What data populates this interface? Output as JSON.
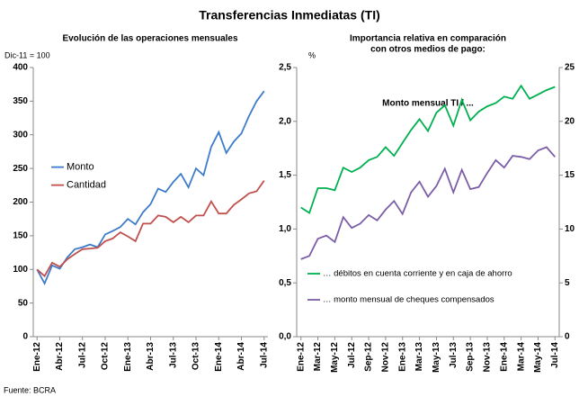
{
  "title": "Transferencias Inmediatas (TI)",
  "source": "Fuente: BCRA",
  "chart_data": [
    {
      "type": "line",
      "subtitle": [
        "Evolución de las operaciones mensuales"
      ],
      "ylabel": "Dic-11 = 100",
      "categories": [
        "Ene-12",
        null,
        null,
        "Abr-12",
        null,
        null,
        "Jul-12",
        null,
        null,
        "Oct-12",
        null,
        null,
        "Ene-13",
        null,
        null,
        "Abr-13",
        null,
        null,
        "Jul-13",
        null,
        null,
        "Oct-13",
        null,
        null,
        "Ene-14",
        null,
        null,
        "Abr-14",
        null,
        null,
        "Jul-14"
      ],
      "series": [
        {
          "name": "Monto",
          "color": "#3d7cc9",
          "values": [
            100,
            79,
            106,
            101,
            118,
            130,
            133,
            137,
            133,
            152,
            157,
            163,
            175,
            167,
            185,
            197,
            220,
            215,
            230,
            242,
            222,
            250,
            240,
            282,
            304,
            273,
            290,
            302,
            328,
            350,
            365
          ]
        },
        {
          "name": "Cantidad",
          "color": "#c0504d",
          "values": [
            100,
            90,
            110,
            104,
            115,
            123,
            130,
            131,
            132,
            142,
            146,
            155,
            149,
            142,
            168,
            168,
            180,
            178,
            170,
            178,
            170,
            180,
            180,
            201,
            183,
            183,
            196,
            204,
            213,
            216,
            232
          ]
        }
      ],
      "ylim": [
        0,
        400
      ],
      "yticks": [
        0,
        50,
        100,
        150,
        200,
        250,
        300,
        350,
        400
      ],
      "grid": false,
      "legend": "center-left"
    },
    {
      "type": "line",
      "subtitle": [
        "Importancia relativa en comparación",
        "con otros medios de pago:"
      ],
      "ylabel": "%",
      "note": "Monto mensual TI / ...",
      "categories": [
        "Ene-12",
        null,
        "Mar-12",
        null,
        "May-12",
        null,
        "Jul-12",
        null,
        "Sep-12",
        null,
        "Nov-12",
        null,
        "Ene-13",
        null,
        "Mar-13",
        null,
        "May-13",
        null,
        "Jul-13",
        null,
        "Sep-13",
        null,
        "Nov-13",
        null,
        "Ene-14",
        null,
        "Mar-14",
        null,
        "May-14",
        null,
        "Jul-14"
      ],
      "series": [
        {
          "name": "… débitos en cuenta corriente y en caja de ahorro",
          "color": "#00b050",
          "values": [
            1.2,
            1.15,
            1.38,
            1.38,
            1.36,
            1.57,
            1.53,
            1.57,
            1.64,
            1.67,
            1.76,
            1.68,
            1.8,
            1.92,
            2.02,
            1.91,
            2.08,
            2.15,
            1.96,
            2.2,
            2.01,
            2.09,
            2.14,
            2.17,
            2.23,
            2.21,
            2.33,
            2.21,
            2.25,
            2.29,
            2.32
          ]
        },
        {
          "name": "… monto mensual de cheques compensados",
          "color": "#7b5ea7",
          "values": [
            0.72,
            0.75,
            0.91,
            0.94,
            0.88,
            1.11,
            1.01,
            1.05,
            1.13,
            1.08,
            1.18,
            1.26,
            1.14,
            1.34,
            1.44,
            1.3,
            1.4,
            1.56,
            1.34,
            1.55,
            1.37,
            1.39,
            1.52,
            1.64,
            1.57,
            1.68,
            1.67,
            1.65,
            1.73,
            1.76,
            1.67
          ]
        }
      ],
      "ylim": [
        0,
        2.5
      ],
      "yticks": [
        {
          "value": 0,
          "label": "0,0"
        },
        {
          "value": 0.5,
          "label": "0,5"
        },
        {
          "value": 1,
          "label": "1,0"
        },
        {
          "value": 1.5,
          "label": "1,5"
        },
        {
          "value": 2,
          "label": "2,0"
        },
        {
          "value": 2.5,
          "label": "2,5"
        }
      ],
      "y2lim": [
        0,
        25
      ],
      "y2ticks": [
        0,
        5,
        10,
        15,
        20,
        25
      ],
      "grid": false,
      "legend": "bottom-left"
    }
  ]
}
